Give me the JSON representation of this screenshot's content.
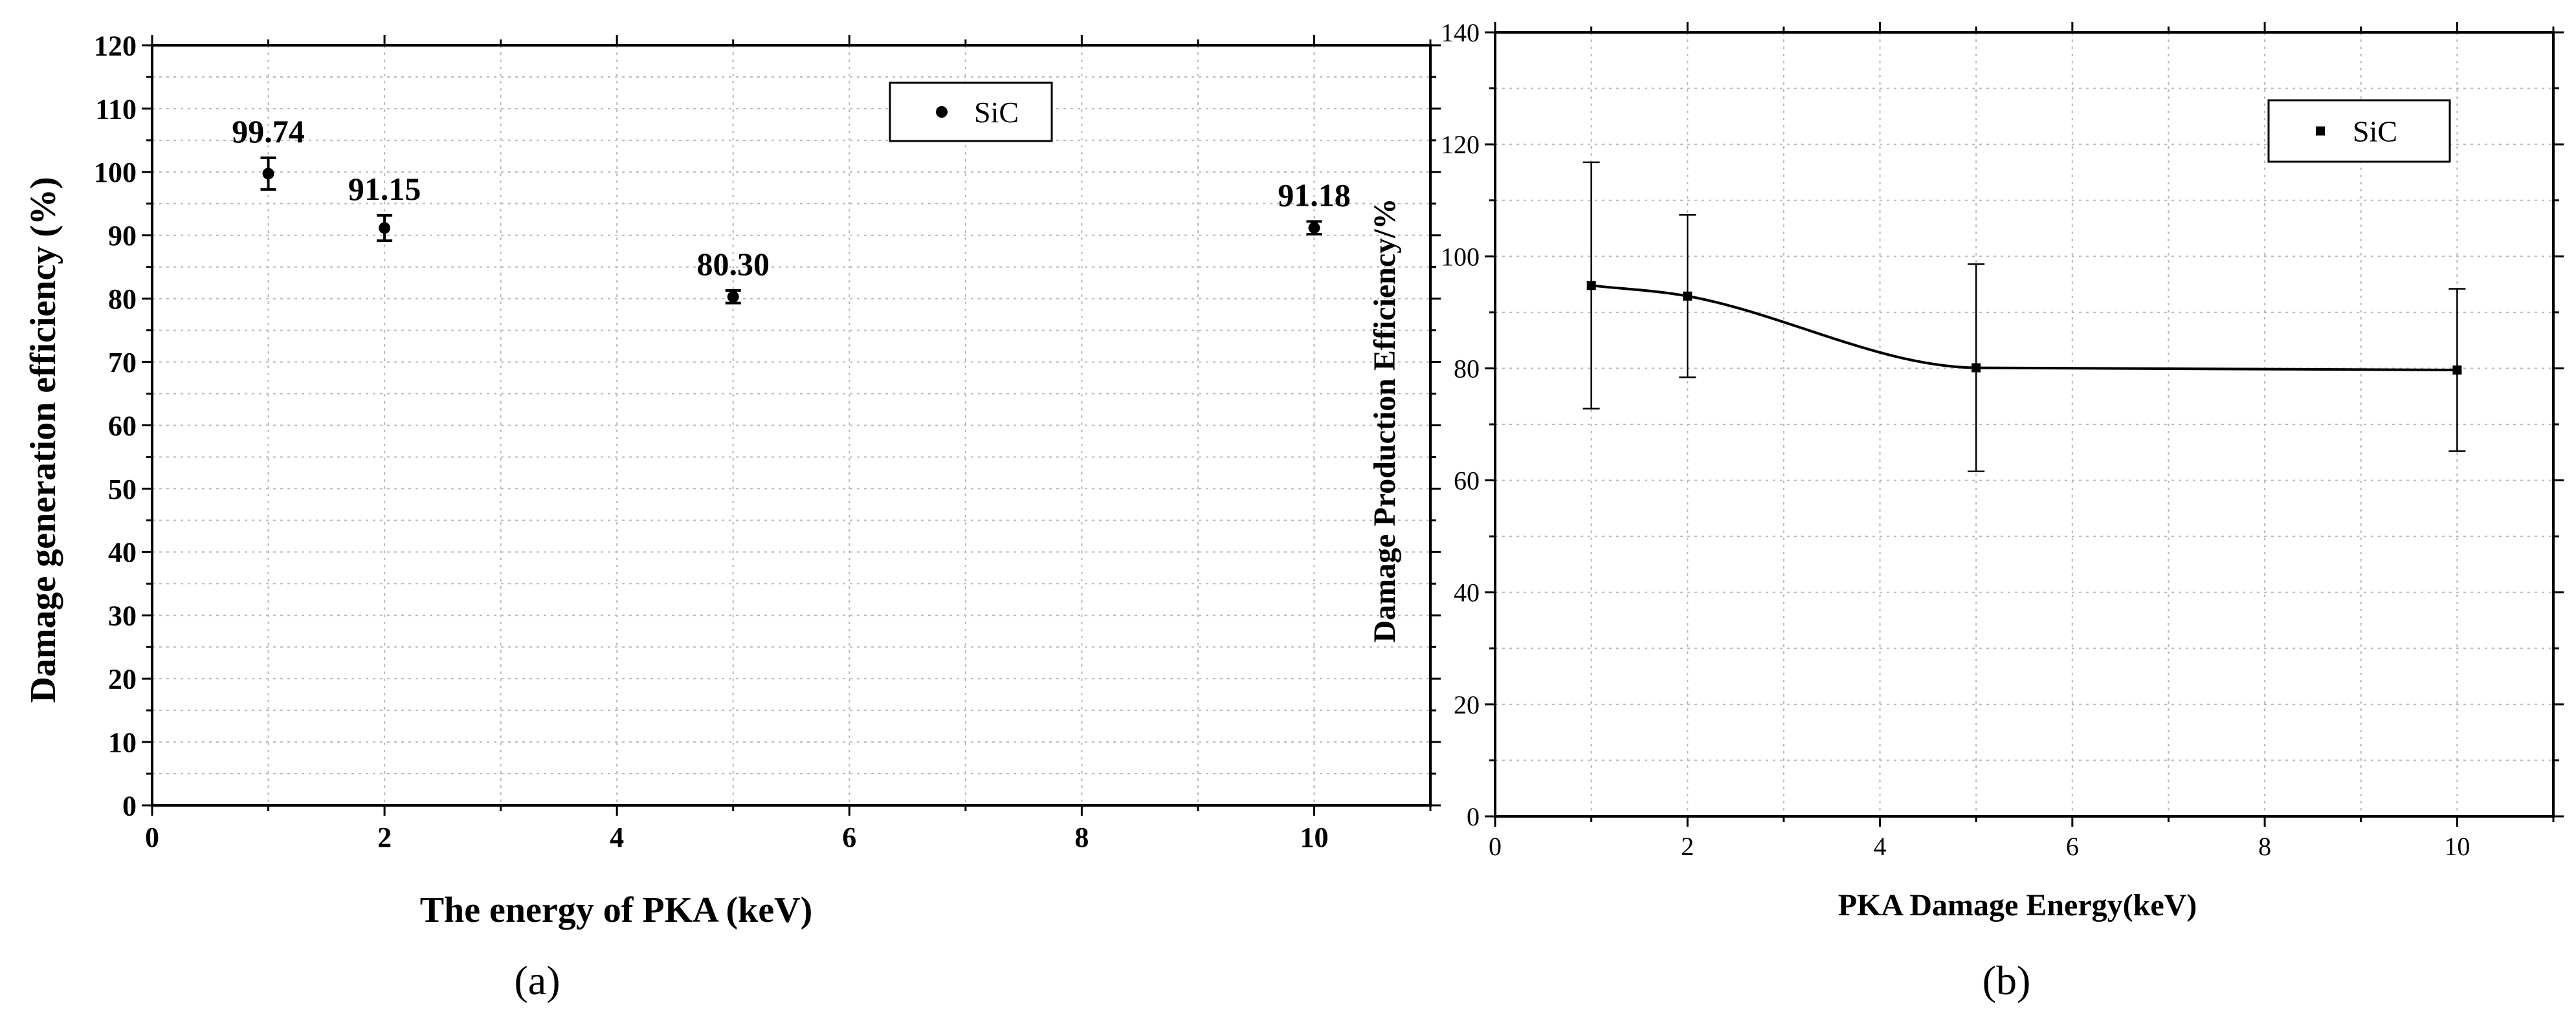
{
  "chart_data": [
    {
      "panel_label": "(a)",
      "type": "scatter",
      "xlabel": "The energy of PKA (keV)",
      "ylabel": "Damage generation efficiency (%)",
      "xlim": [
        0,
        11
      ],
      "ylim": [
        0,
        120
      ],
      "xticks": [
        0,
        2,
        4,
        6,
        8,
        10
      ],
      "yticks": [
        0,
        10,
        20,
        30,
        40,
        50,
        60,
        70,
        80,
        90,
        100,
        110,
        120
      ],
      "grid": true,
      "legend_position": "top-right",
      "series": [
        {
          "name": "SiC",
          "marker": "circle",
          "x": [
            1,
            2,
            5,
            10
          ],
          "y": [
            99.74,
            91.15,
            80.3,
            91.18
          ],
          "yerr": [
            2.5,
            2.0,
            1.0,
            1.0
          ],
          "labels": [
            "99.74",
            "91.15",
            "80.30",
            "91.18"
          ]
        }
      ]
    },
    {
      "panel_label": "(b)",
      "type": "line",
      "xlabel": "PKA Damage Energy(keV)",
      "ylabel": "Damage Production Efficiency/%",
      "xlim": [
        0,
        11
      ],
      "ylim": [
        0,
        140
      ],
      "xticks": [
        0,
        2,
        4,
        6,
        8,
        10
      ],
      "yticks": [
        0,
        20,
        40,
        60,
        80,
        100,
        120,
        140
      ],
      "grid": true,
      "legend_position": "top-right",
      "series": [
        {
          "name": "SiC",
          "marker": "square",
          "x": [
            1,
            2,
            5,
            10
          ],
          "y": [
            94.8,
            92.9,
            80.1,
            79.7
          ],
          "yerr": [
            22,
            14.5,
            18.5,
            14.5
          ],
          "fit": true
        }
      ]
    }
  ]
}
